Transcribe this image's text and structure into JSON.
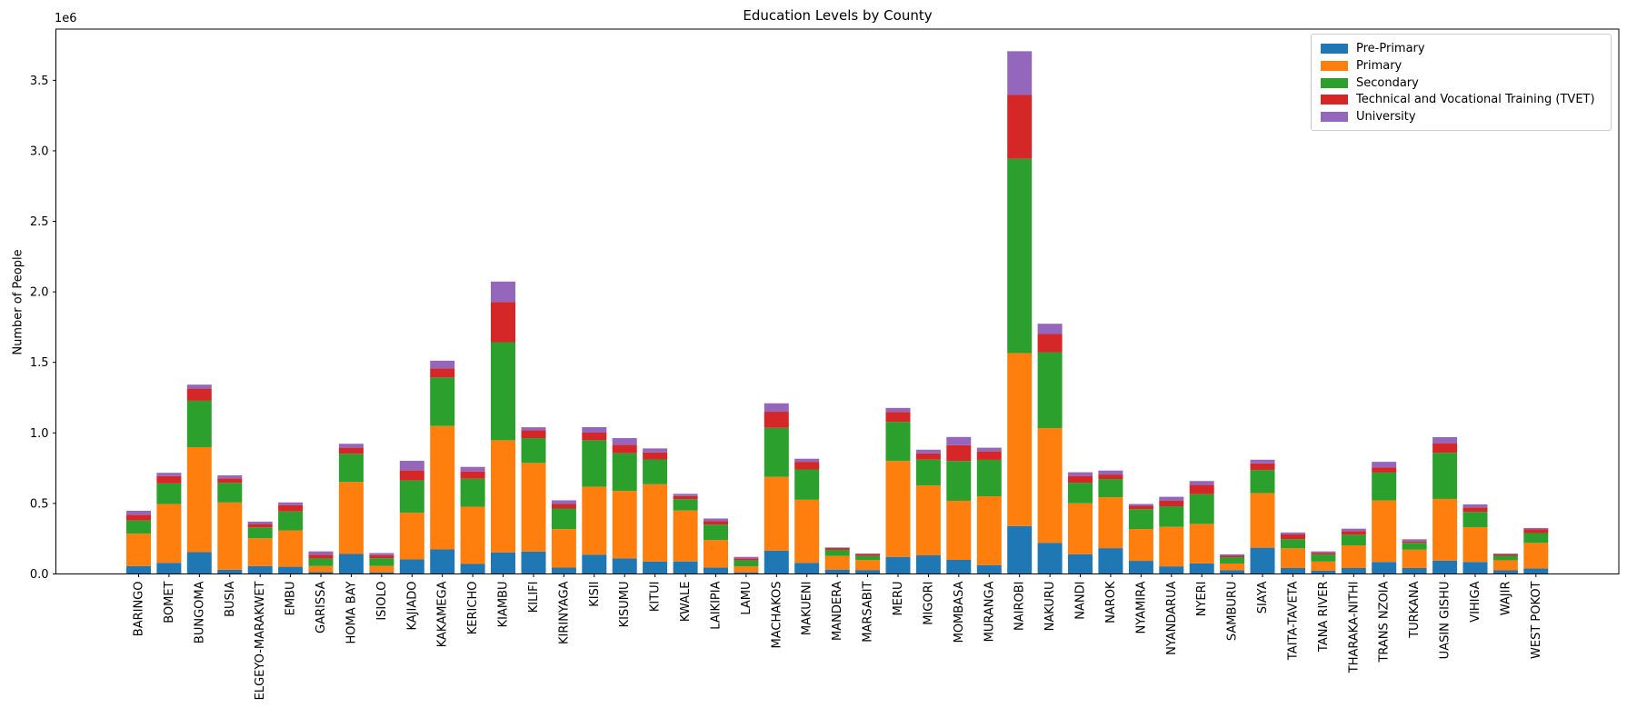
{
  "chart_data": {
    "type": "bar",
    "stacked": true,
    "title": "Education Levels by County",
    "ylabel": "Number of People",
    "xlabel": "",
    "offset_label": "1e6",
    "grid": false,
    "legend_position": "upper right",
    "x_tick_rotation": 90,
    "ylim": [
      0,
      3863000
    ],
    "yticks": [
      0,
      500000,
      1000000,
      1500000,
      2000000,
      2500000,
      3000000,
      3500000
    ],
    "ytick_labels": [
      "0.0",
      "0.5",
      "1.0",
      "1.5",
      "2.0",
      "2.5",
      "3.0",
      "3.5"
    ],
    "categories": [
      "BARINGO",
      "BOMET",
      "BUNGOMA",
      "BUSIA",
      "ELGEYO-MARAKWET",
      "EMBU",
      "GARISSA",
      "HOMA BAY",
      "ISIOLO",
      "KAJIADO",
      "KAKAMEGA",
      "KERICHO",
      "KIAMBU",
      "KILIFI",
      "KIRINYAGA",
      "KISII",
      "KISUMU",
      "KITUI",
      "KWALE",
      "LAIKIPIA",
      "LAMU",
      "MACHAKOS",
      "MAKUENI",
      "MANDERA",
      "MARSABIT",
      "MERU",
      "MIGORI",
      "MOMBASA",
      "MURANGA",
      "NAIROBI",
      "NAKURU",
      "NANDI",
      "NAROK",
      "NYAMIRA",
      "NYANDARUA",
      "NYERI",
      "SAMBURU",
      "SIAYA",
      "TAITA-TAVETA",
      "TANA RIVER",
      "THARAKA-NITHI",
      "TRANS NZOIA",
      "TURKANA",
      "UASIN GISHU",
      "VIHIGA",
      "WAJIR",
      "WEST POKOT"
    ],
    "series": [
      {
        "name": "Pre-Primary",
        "color": "#1f77b4",
        "values": [
          56000,
          79000,
          155000,
          30000,
          56000,
          51000,
          13000,
          142000,
          12000,
          103000,
          174000,
          71000,
          153000,
          159000,
          45000,
          137000,
          110000,
          88000,
          89000,
          46000,
          12000,
          165000,
          79000,
          31000,
          28000,
          121000,
          132000,
          100000,
          63000,
          340000,
          221000,
          140000,
          183000,
          93000,
          54000,
          75000,
          27000,
          186000,
          42000,
          23000,
          42000,
          85000,
          42000,
          95000,
          85000,
          26000,
          40000
        ]
      },
      {
        "name": "Primary",
        "color": "#ff7f0e",
        "values": [
          230000,
          417000,
          744000,
          477000,
          197000,
          258000,
          43000,
          510000,
          45000,
          331000,
          875000,
          406000,
          795000,
          628000,
          273000,
          482000,
          479000,
          548000,
          361000,
          194000,
          42000,
          523000,
          447000,
          97000,
          70000,
          680000,
          495000,
          419000,
          488000,
          1226000,
          813000,
          361000,
          361000,
          226000,
          280000,
          280000,
          47000,
          387000,
          140000,
          65000,
          161000,
          436000,
          130000,
          437000,
          247000,
          71000,
          180000
        ]
      },
      {
        "name": "Secondary",
        "color": "#2ca02c",
        "values": [
          93000,
          146000,
          329000,
          139000,
          77000,
          134000,
          54000,
          200000,
          55000,
          229000,
          344000,
          198000,
          695000,
          176000,
          146000,
          329000,
          267000,
          176000,
          80000,
          110000,
          43000,
          348000,
          215000,
          43000,
          30000,
          277000,
          183000,
          282000,
          258000,
          1378000,
          538000,
          146000,
          129000,
          140000,
          146000,
          211000,
          45000,
          164000,
          65000,
          50000,
          75000,
          198000,
          49000,
          327000,
          108000,
          32000,
          70000
        ]
      },
      {
        "name": "Technical and Vocational Training (TVET)",
        "color": "#d62728",
        "values": [
          41000,
          52000,
          86000,
          32000,
          24000,
          45000,
          26000,
          43000,
          21000,
          71000,
          65000,
          52000,
          284000,
          56000,
          32000,
          54000,
          60000,
          50000,
          23000,
          26000,
          12000,
          114000,
          54000,
          13000,
          13000,
          71000,
          45000,
          112000,
          60000,
          452000,
          129000,
          48000,
          32000,
          24000,
          39000,
          65000,
          10000,
          47000,
          34000,
          12000,
          26000,
          37000,
          10000,
          68000,
          32000,
          11000,
          28000
        ]
      },
      {
        "name": "University",
        "color": "#9467bd",
        "values": [
          28000,
          23000,
          28000,
          21000,
          17000,
          19000,
          24000,
          28000,
          15000,
          68000,
          54000,
          32000,
          146000,
          21000,
          26000,
          39000,
          47000,
          28000,
          15000,
          17000,
          12000,
          60000,
          22000,
          4000,
          4000,
          28000,
          26000,
          58000,
          26000,
          310000,
          73000,
          26000,
          28000,
          13000,
          28000,
          28000,
          10000,
          26000,
          13000,
          10000,
          17000,
          39000,
          15000,
          43000,
          21000,
          5000,
          8000
        ]
      }
    ]
  }
}
